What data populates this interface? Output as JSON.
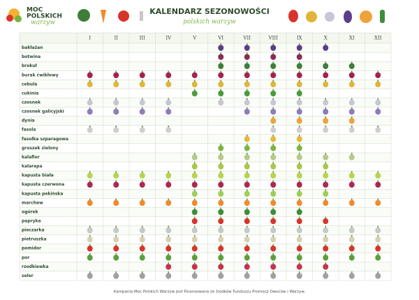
{
  "header": {
    "logo": {
      "line1": "MOC",
      "line2": "POLSKICH",
      "line3": "warzyw"
    },
    "title": "KALENDARZ SEZONOWOŚCI",
    "subtitle": "polskich warzyw"
  },
  "table": {
    "months": [
      "I",
      "II",
      "III",
      "IV",
      "V",
      "VI",
      "VII",
      "VIII",
      "IX",
      "X",
      "XI",
      "XII"
    ],
    "rows": [
      {
        "name": "bakłażan",
        "color": "#5b3d8a",
        "available": [
          false,
          false,
          false,
          false,
          false,
          true,
          true,
          true,
          true,
          true,
          false,
          false
        ]
      },
      {
        "name": "botwina",
        "color": "#8e2a55",
        "available": [
          false,
          false,
          false,
          false,
          false,
          true,
          true,
          true,
          true,
          false,
          false,
          false
        ]
      },
      {
        "name": "brokuł",
        "color": "#3f7d3a",
        "available": [
          false,
          false,
          false,
          false,
          false,
          true,
          true,
          true,
          true,
          true,
          true,
          false
        ]
      },
      {
        "name": "burak ćwikłowy",
        "color": "#a3234f",
        "available": [
          true,
          true,
          true,
          true,
          true,
          true,
          true,
          true,
          true,
          true,
          true,
          true
        ]
      },
      {
        "name": "cebula",
        "color": "#e0b53a",
        "available": [
          true,
          true,
          true,
          true,
          true,
          true,
          true,
          true,
          true,
          true,
          true,
          true
        ]
      },
      {
        "name": "cukinia",
        "color": "#4f9a3c",
        "available": [
          false,
          false,
          false,
          false,
          true,
          true,
          true,
          true,
          true,
          false,
          false,
          false
        ]
      },
      {
        "name": "czosnek",
        "color": "#c9c4d6",
        "available": [
          true,
          true,
          true,
          true,
          false,
          true,
          true,
          true,
          true,
          true,
          true,
          true
        ]
      },
      {
        "name": "czosnek galicyjski",
        "color": "#8f7cb8",
        "available": [
          true,
          true,
          true,
          true,
          false,
          false,
          true,
          true,
          true,
          true,
          true,
          true
        ]
      },
      {
        "name": "dynia",
        "color": "#f0a23a",
        "available": [
          false,
          false,
          false,
          false,
          false,
          false,
          false,
          true,
          true,
          true,
          true,
          false
        ]
      },
      {
        "name": "fasola",
        "color": "#cfcfcf",
        "available": [
          true,
          true,
          true,
          true,
          false,
          false,
          false,
          true,
          true,
          true,
          true,
          true
        ]
      },
      {
        "name": "fasolka szparagowa",
        "color": "#e8b83c",
        "available": [
          false,
          false,
          false,
          false,
          false,
          false,
          true,
          true,
          true,
          false,
          false,
          false
        ]
      },
      {
        "name": "groszek zielony",
        "color": "#7db43e",
        "available": [
          false,
          false,
          false,
          false,
          false,
          true,
          true,
          true,
          true,
          false,
          false,
          false
        ]
      },
      {
        "name": "kalafior",
        "color": "#b8c88a",
        "available": [
          false,
          false,
          false,
          false,
          true,
          true,
          true,
          true,
          true,
          true,
          true,
          false
        ]
      },
      {
        "name": "kalarepa",
        "color": "#a8c84a",
        "available": [
          false,
          false,
          false,
          false,
          true,
          true,
          true,
          true,
          true,
          true,
          false,
          false
        ]
      },
      {
        "name": "kapusta biała",
        "color": "#b7d44a",
        "available": [
          true,
          true,
          true,
          true,
          true,
          true,
          true,
          true,
          true,
          true,
          true,
          true
        ]
      },
      {
        "name": "kapusta czerwona",
        "color": "#b0264f",
        "available": [
          true,
          true,
          true,
          true,
          true,
          true,
          true,
          true,
          true,
          true,
          true,
          true
        ]
      },
      {
        "name": "kapusta pekińska",
        "color": "#9ccf5a",
        "available": [
          false,
          false,
          false,
          false,
          true,
          true,
          true,
          true,
          true,
          true,
          false,
          false
        ]
      },
      {
        "name": "marchew",
        "color": "#f08a2a",
        "available": [
          true,
          true,
          true,
          true,
          true,
          true,
          true,
          true,
          true,
          true,
          true,
          true
        ]
      },
      {
        "name": "ogórek",
        "color": "#3f8d3a",
        "available": [
          false,
          false,
          false,
          false,
          true,
          true,
          true,
          true,
          true,
          false,
          false,
          false
        ]
      },
      {
        "name": "papryka",
        "color": "#d9342b",
        "available": [
          false,
          false,
          false,
          false,
          true,
          true,
          true,
          true,
          true,
          true,
          false,
          false
        ]
      },
      {
        "name": "pieczarka",
        "color": "#c8c8c8",
        "available": [
          true,
          true,
          true,
          true,
          true,
          true,
          true,
          true,
          true,
          true,
          true,
          true
        ]
      },
      {
        "name": "pietruszka",
        "color": "#d8d0b0",
        "available": [
          true,
          true,
          true,
          true,
          true,
          true,
          true,
          true,
          true,
          true,
          true,
          true
        ]
      },
      {
        "name": "pomidor",
        "color": "#d9342b",
        "available": [
          true,
          true,
          true,
          true,
          true,
          true,
          true,
          true,
          true,
          true,
          true,
          true
        ]
      },
      {
        "name": "por",
        "color": "#5aa03c",
        "available": [
          true,
          true,
          true,
          true,
          true,
          true,
          true,
          true,
          true,
          true,
          true,
          true
        ]
      },
      {
        "name": "rzodkiewka",
        "color": "#c8324e",
        "available": [
          false,
          false,
          false,
          true,
          true,
          true,
          true,
          true,
          true,
          true,
          false,
          false
        ]
      },
      {
        "name": "seler",
        "color": "#a0a0a0",
        "available": [
          true,
          true,
          true,
          true,
          true,
          true,
          true,
          true,
          true,
          true,
          true,
          true
        ]
      }
    ]
  },
  "footer": "Kampania Moc Polskich Warzyw jest Finansowana ze środków Funduszu Promocji Owoców i Warzyw."
}
